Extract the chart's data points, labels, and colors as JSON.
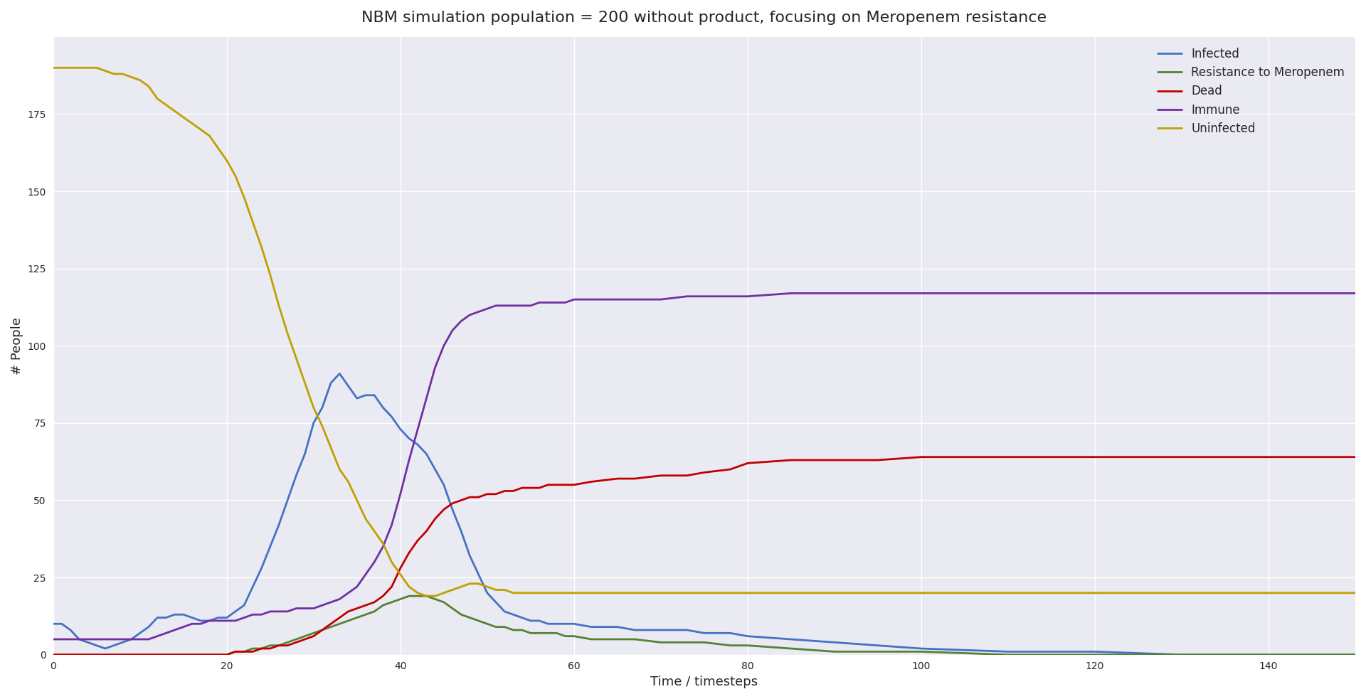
{
  "title": "NBM simulation population = 200 without product, focusing on Meropenem resistance",
  "xlabel": "Time / timesteps",
  "ylabel": "# People",
  "xlim": [
    0,
    150
  ],
  "ylim": [
    0,
    200
  ],
  "legend_entries": [
    "Infected",
    "Resistance to Meropenem",
    "Dead",
    "Immune",
    "Uninfected"
  ],
  "line_colors": {
    "Infected": "#4472C4",
    "Resistance to Meropenem": "#548235",
    "Dead": "#C00000",
    "Immune": "#7030A0",
    "Uninfected": "#BFA000"
  },
  "yticks": [
    0,
    25,
    50,
    75,
    100,
    125,
    150,
    175
  ],
  "xticks": [
    0,
    20,
    40,
    60,
    80,
    100,
    120,
    140
  ],
  "series": {
    "Infected": {
      "x": [
        0,
        1,
        2,
        3,
        4,
        5,
        6,
        7,
        8,
        9,
        10,
        11,
        12,
        13,
        14,
        15,
        16,
        17,
        18,
        19,
        20,
        21,
        22,
        23,
        24,
        25,
        26,
        27,
        28,
        29,
        30,
        31,
        32,
        33,
        34,
        35,
        36,
        37,
        38,
        39,
        40,
        41,
        42,
        43,
        44,
        45,
        46,
        47,
        48,
        49,
        50,
        51,
        52,
        53,
        54,
        55,
        56,
        57,
        58,
        59,
        60,
        62,
        65,
        67,
        70,
        73,
        75,
        78,
        80,
        85,
        90,
        95,
        100,
        110,
        120,
        130,
        140,
        150
      ],
      "y": [
        10,
        10,
        8,
        5,
        4,
        3,
        2,
        3,
        4,
        5,
        7,
        9,
        12,
        12,
        13,
        13,
        12,
        11,
        11,
        12,
        12,
        14,
        16,
        22,
        28,
        35,
        42,
        50,
        58,
        65,
        75,
        80,
        88,
        91,
        87,
        83,
        84,
        84,
        80,
        77,
        73,
        70,
        68,
        65,
        60,
        55,
        47,
        40,
        32,
        26,
        20,
        17,
        14,
        13,
        12,
        11,
        11,
        10,
        10,
        10,
        10,
        9,
        9,
        8,
        8,
        8,
        7,
        7,
        6,
        5,
        4,
        3,
        2,
        1,
        1,
        0,
        0,
        0
      ]
    },
    "Resistance to Meropenem": {
      "x": [
        0,
        1,
        2,
        3,
        4,
        5,
        6,
        7,
        8,
        9,
        10,
        11,
        12,
        13,
        14,
        15,
        16,
        17,
        18,
        19,
        20,
        21,
        22,
        23,
        24,
        25,
        26,
        27,
        28,
        29,
        30,
        31,
        32,
        33,
        34,
        35,
        36,
        37,
        38,
        39,
        40,
        41,
        42,
        43,
        44,
        45,
        46,
        47,
        48,
        49,
        50,
        51,
        52,
        53,
        54,
        55,
        56,
        57,
        58,
        59,
        60,
        62,
        65,
        67,
        70,
        73,
        75,
        78,
        80,
        85,
        90,
        95,
        100,
        110,
        120,
        130,
        140,
        150
      ],
      "y": [
        0,
        0,
        0,
        0,
        0,
        0,
        0,
        0,
        0,
        0,
        0,
        0,
        0,
        0,
        0,
        0,
        0,
        0,
        0,
        0,
        0,
        1,
        1,
        2,
        2,
        3,
        3,
        4,
        5,
        6,
        7,
        8,
        9,
        10,
        11,
        12,
        13,
        14,
        16,
        17,
        18,
        19,
        19,
        19,
        18,
        17,
        15,
        13,
        12,
        11,
        10,
        9,
        9,
        8,
        8,
        7,
        7,
        7,
        7,
        6,
        6,
        5,
        5,
        5,
        4,
        4,
        4,
        3,
        3,
        2,
        1,
        1,
        1,
        0,
        0,
        0,
        0,
        0
      ]
    },
    "Dead": {
      "x": [
        0,
        1,
        2,
        3,
        4,
        5,
        6,
        7,
        8,
        9,
        10,
        11,
        12,
        13,
        14,
        15,
        16,
        17,
        18,
        19,
        20,
        21,
        22,
        23,
        24,
        25,
        26,
        27,
        28,
        29,
        30,
        31,
        32,
        33,
        34,
        35,
        36,
        37,
        38,
        39,
        40,
        41,
        42,
        43,
        44,
        45,
        46,
        47,
        48,
        49,
        50,
        51,
        52,
        53,
        54,
        55,
        56,
        57,
        58,
        59,
        60,
        62,
        65,
        67,
        70,
        73,
        75,
        78,
        80,
        85,
        90,
        95,
        100,
        110,
        120,
        130,
        140,
        150
      ],
      "y": [
        0,
        0,
        0,
        0,
        0,
        0,
        0,
        0,
        0,
        0,
        0,
        0,
        0,
        0,
        0,
        0,
        0,
        0,
        0,
        0,
        0,
        1,
        1,
        1,
        2,
        2,
        3,
        3,
        4,
        5,
        6,
        8,
        10,
        12,
        14,
        15,
        16,
        17,
        19,
        22,
        28,
        33,
        37,
        40,
        44,
        47,
        49,
        50,
        51,
        51,
        52,
        52,
        53,
        53,
        54,
        54,
        54,
        55,
        55,
        55,
        55,
        56,
        57,
        57,
        58,
        58,
        59,
        60,
        62,
        63,
        63,
        63,
        64,
        64,
        64,
        64,
        64,
        64
      ]
    },
    "Immune": {
      "x": [
        0,
        1,
        2,
        3,
        4,
        5,
        6,
        7,
        8,
        9,
        10,
        11,
        12,
        13,
        14,
        15,
        16,
        17,
        18,
        19,
        20,
        21,
        22,
        23,
        24,
        25,
        26,
        27,
        28,
        29,
        30,
        31,
        32,
        33,
        34,
        35,
        36,
        37,
        38,
        39,
        40,
        41,
        42,
        43,
        44,
        45,
        46,
        47,
        48,
        49,
        50,
        51,
        52,
        53,
        54,
        55,
        56,
        57,
        58,
        59,
        60,
        62,
        65,
        67,
        70,
        73,
        75,
        78,
        80,
        85,
        90,
        95,
        100,
        110,
        120,
        130,
        140,
        150
      ],
      "y": [
        5,
        5,
        5,
        5,
        5,
        5,
        5,
        5,
        5,
        5,
        5,
        5,
        6,
        7,
        8,
        9,
        10,
        10,
        11,
        11,
        11,
        11,
        12,
        13,
        13,
        14,
        14,
        14,
        15,
        15,
        15,
        16,
        17,
        18,
        20,
        22,
        26,
        30,
        35,
        42,
        52,
        63,
        73,
        83,
        93,
        100,
        105,
        108,
        110,
        111,
        112,
        113,
        113,
        113,
        113,
        113,
        114,
        114,
        114,
        114,
        115,
        115,
        115,
        115,
        115,
        116,
        116,
        116,
        116,
        117,
        117,
        117,
        117,
        117,
        117,
        117,
        117,
        117
      ]
    },
    "Uninfected": {
      "x": [
        0,
        1,
        2,
        3,
        4,
        5,
        6,
        7,
        8,
        9,
        10,
        11,
        12,
        13,
        14,
        15,
        16,
        17,
        18,
        19,
        20,
        21,
        22,
        23,
        24,
        25,
        26,
        27,
        28,
        29,
        30,
        31,
        32,
        33,
        34,
        35,
        36,
        37,
        38,
        39,
        40,
        41,
        42,
        43,
        44,
        45,
        46,
        47,
        48,
        49,
        50,
        51,
        52,
        53,
        54,
        55,
        56,
        57,
        58,
        59,
        60,
        62,
        65,
        67,
        70,
        73,
        75,
        78,
        80,
        85,
        90,
        95,
        100,
        110,
        120,
        130,
        140,
        150
      ],
      "y": [
        190,
        190,
        190,
        190,
        190,
        190,
        189,
        188,
        188,
        187,
        186,
        184,
        180,
        178,
        176,
        174,
        172,
        170,
        168,
        164,
        160,
        155,
        148,
        140,
        132,
        123,
        113,
        104,
        96,
        88,
        80,
        74,
        67,
        60,
        56,
        50,
        44,
        40,
        36,
        30,
        26,
        22,
        20,
        19,
        19,
        20,
        21,
        22,
        23,
        23,
        22,
        21,
        21,
        20,
        20,
        20,
        20,
        20,
        20,
        20,
        20,
        20,
        20,
        20,
        20,
        20,
        20,
        20,
        20,
        20,
        20,
        20,
        20,
        20,
        20,
        20,
        20,
        20
      ]
    }
  }
}
